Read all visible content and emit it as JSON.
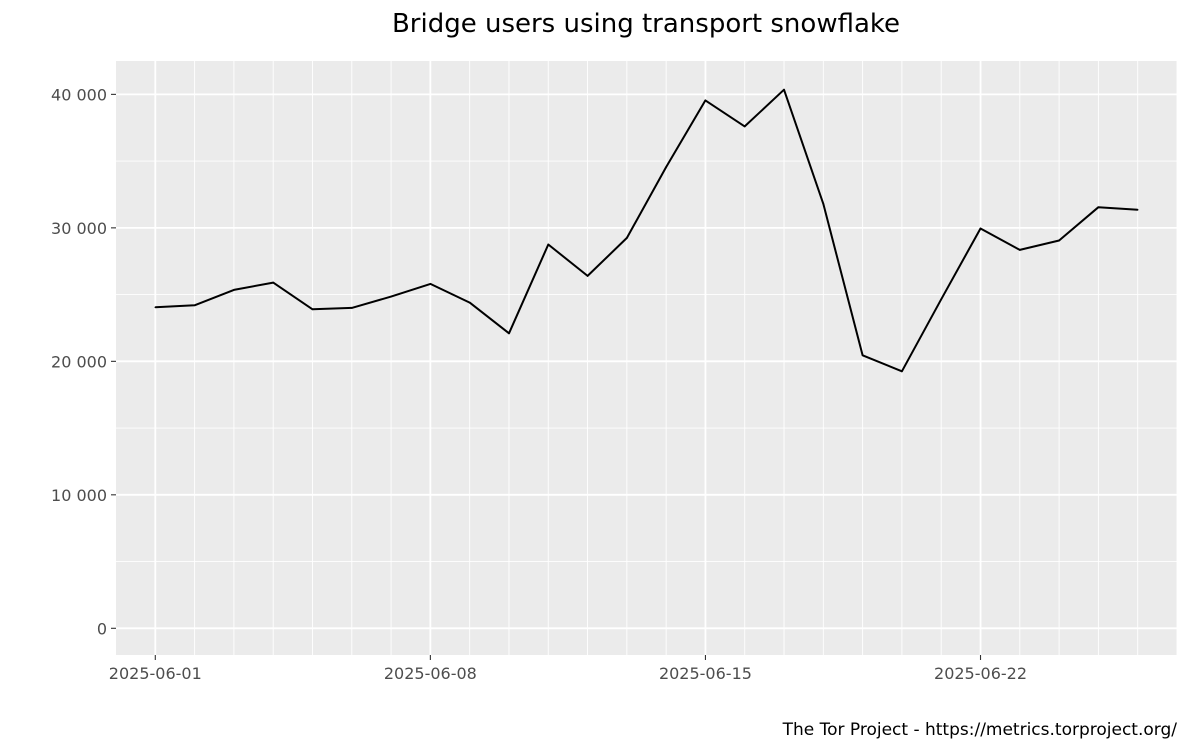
{
  "chart_data": {
    "type": "line",
    "title": "Bridge users using transport snowflake",
    "xlabel": "",
    "ylabel": "",
    "x_tick_labels": [
      "2025-06-01",
      "2025-06-08",
      "2025-06-15",
      "2025-06-22"
    ],
    "y_tick_labels": [
      "0",
      "10 000",
      "20 000",
      "30 000",
      "40 000"
    ],
    "y_ticks": [
      0,
      10000,
      20000,
      30000,
      40000
    ],
    "xlim": [
      "2025-05-31",
      "2025-06-27"
    ],
    "ylim": [
      -2000,
      42500
    ],
    "grid": true,
    "legend": "none",
    "caption": "The Tor Project - https://metrics.torproject.org/",
    "series": [
      {
        "color": "#000000",
        "x": [
          "2025-06-01",
          "2025-06-02",
          "2025-06-03",
          "2025-06-04",
          "2025-06-05",
          "2025-06-06",
          "2025-06-07",
          "2025-06-08",
          "2025-06-09",
          "2025-06-10",
          "2025-06-11",
          "2025-06-12",
          "2025-06-13",
          "2025-06-14",
          "2025-06-15",
          "2025-06-16",
          "2025-06-17",
          "2025-06-18",
          "2025-06-19",
          "2025-06-20",
          "2025-06-21",
          "2025-06-22",
          "2025-06-23",
          "2025-06-24",
          "2025-06-25",
          "2025-06-26"
        ],
        "values": [
          24050,
          24200,
          25350,
          25900,
          23900,
          24000,
          24850,
          25800,
          24400,
          22100,
          28750,
          26400,
          29250,
          34550,
          39550,
          37600,
          40350,
          31800,
          20450,
          19250,
          24650,
          29950,
          28350,
          29050,
          31550,
          31350
        ]
      }
    ]
  },
  "colors": {
    "panel": "#ebebeb",
    "grid_major": "#ffffff",
    "line": "#000000"
  }
}
